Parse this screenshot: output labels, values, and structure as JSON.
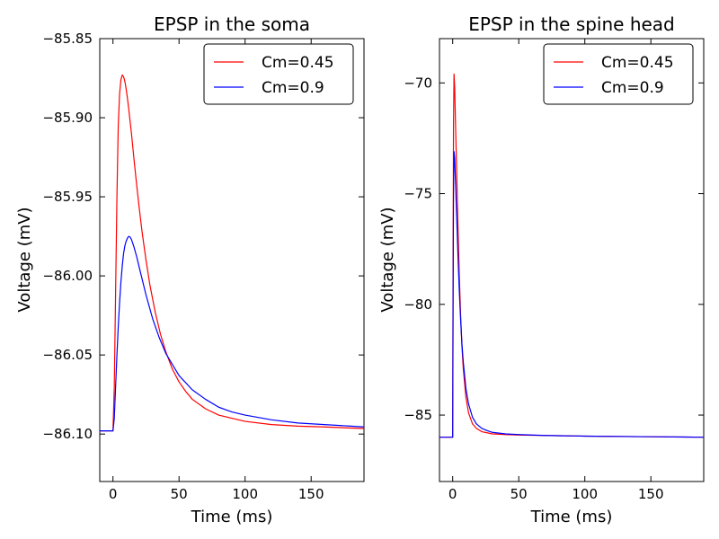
{
  "chart_data": [
    {
      "type": "line",
      "title": "EPSP in the soma",
      "xlabel": "Time (ms)",
      "ylabel": "Voltage (mV)",
      "xlim": [
        -10,
        190
      ],
      "ylim": [
        -86.13,
        -85.85
      ],
      "xticks": [
        0,
        50,
        100,
        150
      ],
      "xtick_labels": [
        "0",
        "50",
        "100",
        "150"
      ],
      "yticks": [
        -86.1,
        -86.05,
        -86.0,
        -85.95,
        -85.9,
        -85.85
      ],
      "ytick_labels": [
        "−86.10",
        "−86.05",
        "−86.00",
        "−85.95",
        "−85.90",
        "−85.85"
      ],
      "legend_position": "top-right",
      "series": [
        {
          "name": "Cm=0.45",
          "color": "#ff0000",
          "x": [
            -10,
            0,
            1,
            2,
            3,
            4,
            5,
            6,
            7,
            8,
            9,
            10,
            11,
            12,
            14,
            16,
            18,
            20,
            22,
            25,
            28,
            32,
            36,
            40,
            45,
            50,
            55,
            60,
            70,
            80,
            90,
            100,
            120,
            140,
            160,
            180,
            190
          ],
          "y": [
            -86.098,
            -86.098,
            -86.07,
            -86.01,
            -85.95,
            -85.905,
            -85.885,
            -85.876,
            -85.873,
            -85.874,
            -85.877,
            -85.882,
            -85.888,
            -85.895,
            -85.91,
            -85.927,
            -85.943,
            -85.958,
            -85.972,
            -85.99,
            -86.006,
            -86.023,
            -86.037,
            -86.048,
            -86.059,
            -86.067,
            -86.073,
            -86.078,
            -86.084,
            -86.088,
            -86.09,
            -86.092,
            -86.094,
            -86.095,
            -86.0955,
            -86.0962,
            -86.0965
          ]
        },
        {
          "name": "Cm=0.9",
          "color": "#0000ff",
          "x": [
            -10,
            0,
            1,
            2,
            3,
            4,
            5,
            6,
            7,
            8,
            9,
            10,
            11,
            12,
            13,
            14,
            16,
            18,
            20,
            25,
            30,
            35,
            40,
            50,
            60,
            70,
            80,
            90,
            100,
            120,
            140,
            160,
            180,
            190
          ],
          "y": [
            -86.098,
            -86.098,
            -86.09,
            -86.07,
            -86.05,
            -86.032,
            -86.017,
            -86.004,
            -85.994,
            -85.986,
            -85.981,
            -85.978,
            -85.976,
            -85.975,
            -85.9755,
            -85.977,
            -85.982,
            -85.988,
            -85.995,
            -86.012,
            -86.027,
            -86.039,
            -86.049,
            -86.063,
            -86.072,
            -86.078,
            -86.083,
            -86.086,
            -86.088,
            -86.091,
            -86.093,
            -86.094,
            -86.095,
            -86.0955
          ]
        }
      ]
    },
    {
      "type": "line",
      "title": "EPSP in the spine head",
      "xlabel": "Time (ms)",
      "ylabel": "Voltage (mV)",
      "xlim": [
        -10,
        190
      ],
      "ylim": [
        -88,
        -68
      ],
      "xticks": [
        0,
        50,
        100,
        150
      ],
      "xtick_labels": [
        "0",
        "50",
        "100",
        "150"
      ],
      "yticks": [
        -85,
        -80,
        -75,
        -70
      ],
      "ytick_labels": [
        "−85",
        "−80",
        "−75",
        "−70"
      ],
      "legend_position": "top-right",
      "series": [
        {
          "name": "Cm=0.45",
          "color": "#ff0000",
          "x": [
            -10,
            0,
            0.3,
            0.6,
            1,
            1.5,
            2,
            3,
            4,
            5,
            6,
            7,
            8,
            10,
            12,
            15,
            18,
            22,
            26,
            30,
            40,
            50,
            70,
            100,
            150,
            190
          ],
          "y": [
            -86.0,
            -86.0,
            -78.0,
            -72.0,
            -69.6,
            -70.2,
            -71.5,
            -74.0,
            -76.5,
            -78.7,
            -80.5,
            -81.9,
            -82.9,
            -84.2,
            -84.9,
            -85.4,
            -85.6,
            -85.75,
            -85.8,
            -85.85,
            -85.88,
            -85.9,
            -85.92,
            -85.95,
            -85.98,
            -86.0
          ]
        },
        {
          "name": "Cm=0.9",
          "color": "#0000ff",
          "x": [
            -10,
            0,
            0.3,
            0.6,
            1,
            1.5,
            2,
            3,
            4,
            5,
            6,
            7,
            8,
            10,
            12,
            15,
            18,
            22,
            26,
            30,
            40,
            50,
            70,
            100,
            150,
            190
          ],
          "y": [
            -86.0,
            -86.0,
            -80.0,
            -75.0,
            -73.1,
            -73.4,
            -74.3,
            -76.0,
            -77.8,
            -79.4,
            -80.7,
            -81.8,
            -82.6,
            -83.8,
            -84.5,
            -85.1,
            -85.4,
            -85.6,
            -85.7,
            -85.78,
            -85.85,
            -85.88,
            -85.92,
            -85.95,
            -85.98,
            -86.0
          ]
        }
      ]
    }
  ],
  "panels": [
    {
      "title": "EPSP in the soma",
      "xlabel": "Time (ms)",
      "ylabel": "Voltage (mV)",
      "legend": [
        "Cm=0.45",
        "Cm=0.9"
      ]
    },
    {
      "title": "EPSP in the spine head",
      "xlabel": "Time (ms)",
      "ylabel": "Voltage (mV)",
      "legend": [
        "Cm=0.45",
        "Cm=0.9"
      ]
    }
  ]
}
